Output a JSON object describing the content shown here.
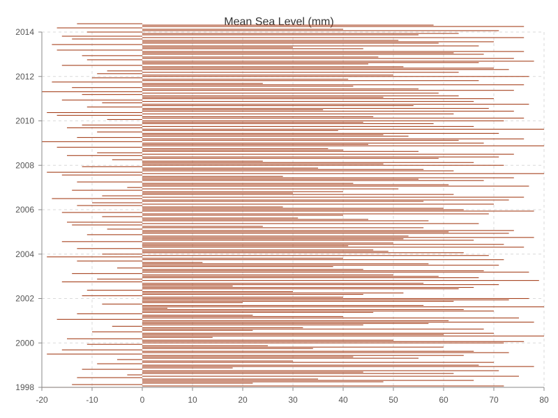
{
  "chart_data": {
    "type": "bar",
    "orientation": "horizontal",
    "title": "Mean Sea Level (mm)",
    "xlabel": "",
    "ylabel": "",
    "xlim": [
      -20,
      80
    ],
    "ylim": [
      1998,
      2014
    ],
    "x_ticks": [
      -20,
      -10,
      0,
      10,
      20,
      30,
      40,
      50,
      60,
      70,
      80
    ],
    "y_ticks": [
      1998,
      2000,
      2002,
      2004,
      2006,
      2008,
      2010,
      2012,
      2014
    ],
    "grid": true,
    "legend": "none",
    "bar_color": "#a5401c",
    "series": [
      {
        "x_start": 1998.0,
        "step": 0.0625,
        "values": [
          -20,
          72,
          -14,
          22,
          48,
          66,
          35,
          -13,
          75,
          -3,
          62,
          44,
          71,
          -12,
          18,
          78,
          67,
          -9,
          70,
          30,
          -5,
          55,
          42,
          64,
          -19,
          73,
          66,
          -16,
          34,
          60,
          25,
          -11,
          72,
          76,
          50,
          -15,
          14,
          80,
          60,
          70,
          -10,
          22,
          68,
          32,
          -6,
          44,
          57,
          78,
          61,
          -17,
          75,
          40,
          22,
          -13,
          46,
          70,
          64,
          5,
          80,
          56,
          -8,
          20,
          62,
          73,
          77,
          40,
          -12,
          44,
          52,
          30,
          -11,
          63,
          66,
          18,
          71,
          56,
          -16,
          79,
          -9,
          67,
          59,
          50,
          -14,
          77,
          68,
          44,
          -5,
          38,
          71,
          57,
          12,
          -13,
          72,
          40,
          -19,
          69,
          -8,
          64,
          49,
          46,
          -13,
          76,
          41,
          72,
          50,
          -16,
          66,
          52,
          78,
          53,
          -11,
          73,
          61,
          74,
          -7,
          56,
          24,
          -14,
          67,
          -15,
          57,
          45,
          31,
          -8,
          40,
          69,
          -16,
          78,
          64,
          60,
          28,
          -13,
          70,
          -10,
          56,
          73,
          -18,
          76,
          -8,
          62,
          30,
          40,
          -14,
          51,
          -3,
          77,
          61,
          42,
          -13,
          68,
          55,
          74,
          28,
          -16,
          80,
          -19,
          62,
          56,
          35,
          -12,
          72,
          48,
          66,
          24,
          -6,
          59,
          71,
          -15,
          74,
          -9,
          55,
          40,
          37,
          -17,
          80,
          45,
          68,
          -20,
          63,
          76,
          -13,
          53,
          48,
          71,
          -9,
          39,
          80,
          -15,
          66,
          -12,
          58,
          44,
          72,
          -7,
          76,
          46,
          -17,
          62,
          -19,
          74,
          36,
          69,
          -11,
          54,
          77,
          -8,
          66,
          -16,
          70,
          48,
          63,
          -12,
          59,
          -20,
          74,
          55,
          -14,
          42,
          76,
          24,
          -18,
          67,
          41,
          -10,
          77,
          50,
          -9,
          63,
          -7,
          73,
          70,
          52,
          -16,
          45,
          67,
          78,
          -11,
          74,
          47,
          -12,
          68,
          62,
          76,
          -17,
          44,
          30,
          67,
          -18,
          59,
          70,
          51,
          -14,
          76,
          -16,
          55,
          63,
          -11,
          71,
          40,
          -17,
          76,
          58,
          -13
        ]
      }
    ]
  }
}
